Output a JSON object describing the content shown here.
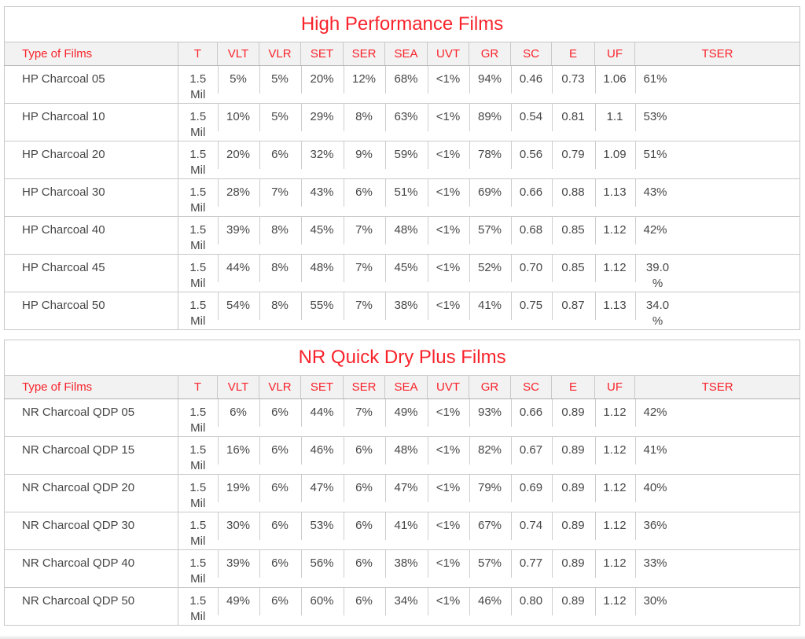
{
  "colors": {
    "accent_red": "#f8232b",
    "body_text": "#474747",
    "border_gray": "#c9c9c9",
    "header_background": "#f2f2f2"
  },
  "tables": [
    {
      "title": "High Performance Films",
      "columns": [
        "Type of Films",
        "T",
        "VLT",
        "VLR",
        "SET",
        "SER",
        "SEA",
        "UVT",
        "GR",
        "SC",
        "E",
        "UF",
        "TSER"
      ],
      "rows": [
        [
          "HP Charcoal 05",
          "1.5 Mil",
          "5%",
          "5%",
          "20%",
          "12%",
          "68%",
          "<1%",
          "94%",
          "0.46",
          "0.73",
          "1.06",
          "61%"
        ],
        [
          "HP Charcoal 10",
          "1.5 Mil",
          "10%",
          "5%",
          "29%",
          "8%",
          "63%",
          "<1%",
          "89%",
          "0.54",
          "0.81",
          "1.1",
          "53%"
        ],
        [
          "HP Charcoal 20",
          "1.5 Mil",
          "20%",
          "6%",
          "32%",
          "9%",
          "59%",
          "<1%",
          "78%",
          "0.56",
          "0.79",
          "1.09",
          "51%"
        ],
        [
          "HP Charcoal 30",
          "1.5 Mil",
          "28%",
          "7%",
          "43%",
          "6%",
          "51%",
          "<1%",
          "69%",
          "0.66",
          "0.88",
          "1.13",
          "43%"
        ],
        [
          "HP Charcoal 40",
          "1.5 Mil",
          "39%",
          "8%",
          "45%",
          "7%",
          "48%",
          "<1%",
          "57%",
          "0.68",
          "0.85",
          "1.12",
          "42%"
        ],
        [
          "HP Charcoal 45",
          "1.5 Mil",
          "44%",
          "8%",
          "48%",
          "7%",
          "45%",
          "<1%",
          "52%",
          "0.70",
          "0.85",
          "1.12",
          "39.0 %"
        ],
        [
          "HP Charcoal 50",
          "1.5 Mil",
          "54%",
          "8%",
          "55%",
          "7%",
          "38%",
          "<1%",
          "41%",
          "0.75",
          "0.87",
          "1.13",
          "34.0 %"
        ]
      ]
    },
    {
      "title": "NR Quick Dry Plus Films",
      "columns": [
        "Type of Films",
        "T",
        "VLT",
        "VLR",
        "SET",
        "SER",
        "SEA",
        "UVT",
        "GR",
        "SC",
        "E",
        "UF",
        "TSER"
      ],
      "rows": [
        [
          "NR Charcoal QDP 05",
          "1.5 Mil",
          "6%",
          "6%",
          "44%",
          "7%",
          "49%",
          "<1%",
          "93%",
          "0.66",
          "0.89",
          "1.12",
          "42%"
        ],
        [
          "NR Charcoal QDP 15",
          "1.5 Mil",
          "16%",
          "6%",
          "46%",
          "6%",
          "48%",
          "<1%",
          "82%",
          "0.67",
          "0.89",
          "1.12",
          "41%"
        ],
        [
          "NR Charcoal QDP 20",
          "1.5 Mil",
          "19%",
          "6%",
          "47%",
          "6%",
          "47%",
          "<1%",
          "79%",
          "0.69",
          "0.89",
          "1.12",
          "40%"
        ],
        [
          "NR Charcoal QDP 30",
          "1.5 Mil",
          "30%",
          "6%",
          "53%",
          "6%",
          "41%",
          "<1%",
          "67%",
          "0.74",
          "0.89",
          "1.12",
          "36%"
        ],
        [
          "NR Charcoal QDP 40",
          "1.5 Mil",
          "39%",
          "6%",
          "56%",
          "6%",
          "38%",
          "<1%",
          "57%",
          "0.77",
          "0.89",
          "1.12",
          "33%"
        ],
        [
          "NR Charcoal QDP 50",
          "1.5 Mil",
          "49%",
          "6%",
          "60%",
          "6%",
          "34%",
          "<1%",
          "46%",
          "0.80",
          "0.89",
          "1.12",
          "30%"
        ]
      ]
    }
  ]
}
